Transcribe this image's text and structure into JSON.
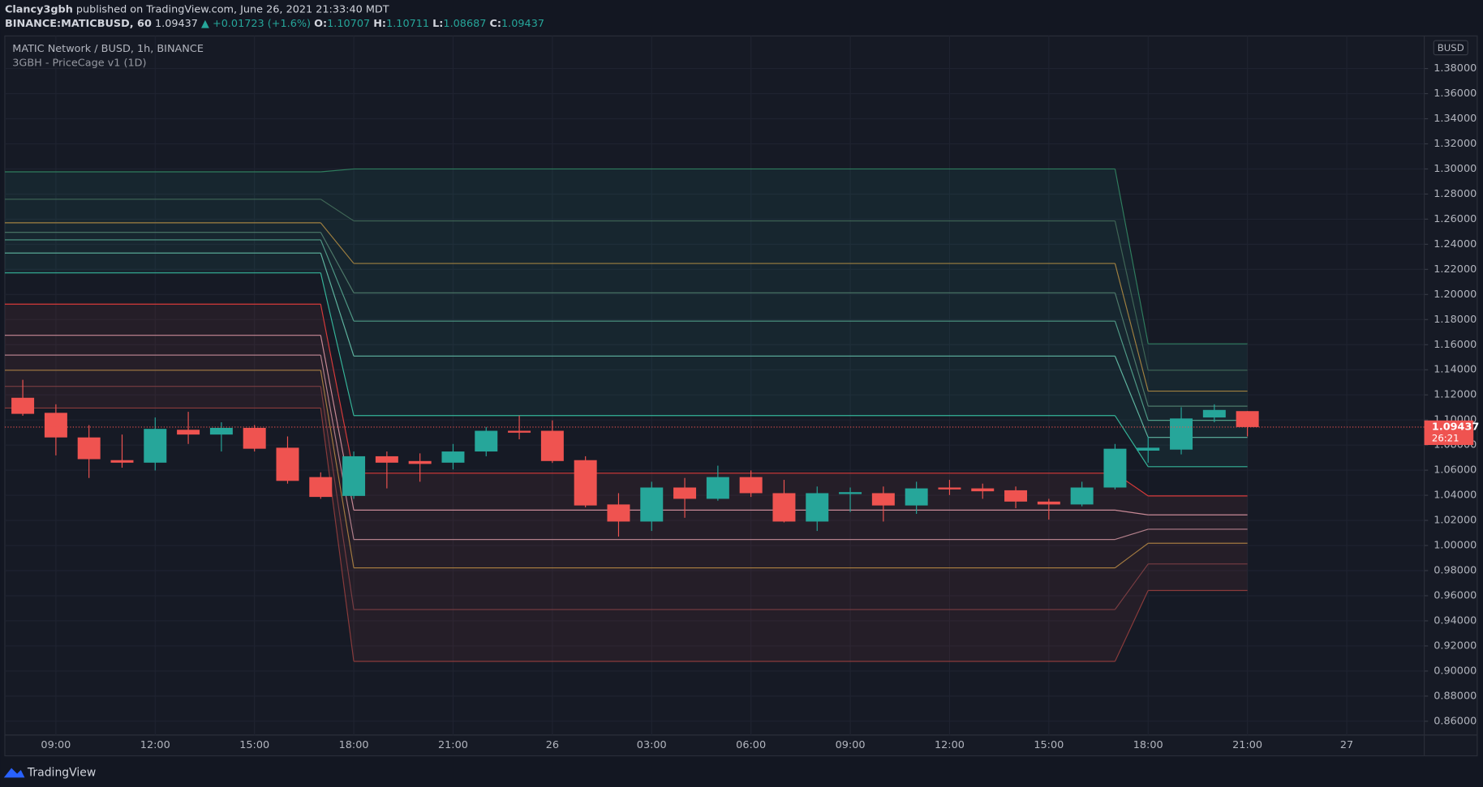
{
  "header": {
    "author": "Clancy3gbh",
    "published": "published on TradingView.com, June 26, 2021 21:33:40 MDT",
    "symbol": "BINANCE:MATICBUSD, 60",
    "price": "1.09437",
    "change": "▲ +0.01723 (+1.6%)",
    "o_label": "O:",
    "o": "1.10707",
    "h_label": "H:",
    "h": "1.10711",
    "l_label": "L:",
    "l": "1.08687",
    "c_label": "C:",
    "c": "1.09437"
  },
  "footer": {
    "brand": "TradingView"
  },
  "chart_data": {
    "type": "candlestick",
    "title": "MATIC Network / BUSD, 1h, BINANCE",
    "subtitle": "3GBH - PriceCage v1 (1D)",
    "currency": "BUSD",
    "last_price": 1.09437,
    "countdown": "26:21",
    "up_color": "#26a69a",
    "down_color": "#ef5350",
    "grid": true,
    "categories": [
      null,
      "09:00",
      null,
      null,
      "12:00",
      null,
      null,
      "15:00",
      null,
      null,
      "18:00",
      null,
      null,
      "21:00",
      null,
      null,
      "26",
      null,
      null,
      "03:00",
      null,
      null,
      "06:00",
      null,
      null,
      "09:00",
      null,
      null,
      "12:00",
      null,
      null,
      "15:00",
      null,
      null,
      "18:00",
      null,
      null,
      "21:00",
      null,
      null,
      "27"
    ],
    "open": [
      1.1177,
      1.1057,
      1.0861,
      1.068,
      1.066,
      1.0922,
      1.0884,
      1.0937,
      1.0779,
      1.0545,
      1.0395,
      1.0711,
      1.0673,
      1.066,
      1.0749,
      1.0914,
      1.0914,
      1.068,
      1.0327,
      1.0191,
      1.0462,
      1.0372,
      1.0545,
      1.0417,
      1.0191,
      1.041,
      1.0417,
      1.0319,
      1.0462,
      1.0455,
      1.044,
      1.035,
      1.0327,
      1.0462,
      1.0756,
      1.0764,
      1.102,
      1.10707,
      null,
      null,
      null
    ],
    "high": [
      1.132,
      1.1125,
      1.0959,
      1.0884,
      1.102,
      1.1065,
      1.0982,
      1.096,
      1.0869,
      1.0583,
      1.0749,
      1.0749,
      1.0734,
      1.0809,
      1.0944,
      1.1035,
      1.0997,
      1.0711,
      1.0417,
      1.0508,
      1.0538,
      1.0636,
      1.0598,
      1.0523,
      1.047,
      1.0462,
      1.047,
      1.0508,
      1.0523,
      1.0493,
      1.047,
      1.0372,
      1.0508,
      1.0809,
      1.0869,
      1.1102,
      1.1125,
      1.10711,
      null,
      null,
      null
    ],
    "low": [
      1.1034,
      1.0718,
      1.0538,
      1.062,
      1.0598,
      1.0809,
      1.0749,
      1.0749,
      1.0493,
      1.0372,
      1.0372,
      1.0455,
      1.0508,
      1.0606,
      1.0711,
      1.0846,
      1.0658,
      1.0304,
      1.0071,
      1.0116,
      1.0221,
      1.0357,
      1.0387,
      1.0184,
      1.0116,
      1.0267,
      1.0191,
      1.0252,
      1.0402,
      1.0372,
      1.0297,
      1.0206,
      1.0312,
      1.0447,
      1.066,
      1.0726,
      1.0982,
      1.08687,
      null,
      null,
      null
    ],
    "close": [
      1.1049,
      1.0861,
      1.0688,
      1.066,
      1.0929,
      1.0884,
      1.0937,
      1.0771,
      1.0515,
      1.0387,
      1.0711,
      1.066,
      1.065,
      1.0749,
      1.0914,
      1.0899,
      1.0673,
      1.0319,
      1.0191,
      1.0462,
      1.0372,
      1.0545,
      1.0417,
      1.0191,
      1.0417,
      1.0425,
      1.0319,
      1.0455,
      1.0447,
      1.0432,
      1.035,
      1.0327,
      1.0462,
      1.0771,
      1.0779,
      1.1012,
      1.108,
      1.09437,
      null,
      null,
      null
    ],
    "bands": [
      {
        "color": "#2f7d5e",
        "levels": [
          1.2977,
          1.3,
          1.1607
        ]
      },
      {
        "color": "#3f6656",
        "levels": [
          1.2759,
          1.2586,
          1.1396
        ]
      },
      {
        "color": "#a08040",
        "levels": [
          1.2571,
          1.2247,
          1.123
        ]
      },
      {
        "color": "#4e7a6a",
        "levels": [
          1.2495,
          1.2013,
          1.111
        ]
      },
      {
        "color": "#4f9a86",
        "levels": [
          1.2435,
          1.1788,
          1.0997
        ]
      },
      {
        "color": "#5fb5a0",
        "levels": [
          1.233,
          1.1509,
          1.0861
        ]
      },
      {
        "color": "#35b59a",
        "levels": [
          1.2172,
          1.1035,
          1.0628
        ]
      },
      {
        "color": "#d83a3a",
        "levels": [
          1.1923,
          1.0576,
          1.0395
        ]
      },
      {
        "color": "#c98a96",
        "levels": [
          1.1675,
          1.0282,
          1.0244
        ]
      },
      {
        "color": "#b27f8a",
        "levels": [
          1.1517,
          1.0048,
          1.013
        ]
      },
      {
        "color": "#a37a40",
        "levels": [
          1.1396,
          0.9822,
          1.0018
        ]
      },
      {
        "color": "#7a3d42",
        "levels": [
          1.1268,
          0.949,
          0.9853
        ]
      },
      {
        "color": "#8a3b3b",
        "levels": [
          1.1095,
          0.9077,
          0.9642
        ]
      }
    ],
    "ylim": [
      0.849,
      1.406
    ],
    "yticks": [
      {
        "value": 0.86,
        "label": "0.86000"
      },
      {
        "value": 0.88,
        "label": "0.88000"
      },
      {
        "value": 0.9,
        "label": "0.90000"
      },
      {
        "value": 0.92,
        "label": "0.92000"
      },
      {
        "value": 0.94,
        "label": "0.94000"
      },
      {
        "value": 0.96,
        "label": "0.96000"
      },
      {
        "value": 0.98,
        "label": "0.98000"
      },
      {
        "value": 1.0,
        "label": "1.00000"
      },
      {
        "value": 1.02,
        "label": "1.02000"
      },
      {
        "value": 1.04,
        "label": "1.04000"
      },
      {
        "value": 1.06,
        "label": "1.06000"
      },
      {
        "value": 1.08,
        "label": "1.08000"
      },
      {
        "value": 1.1,
        "label": "1.10000"
      },
      {
        "value": 1.12,
        "label": "1.12000"
      },
      {
        "value": 1.14,
        "label": "1.14000"
      },
      {
        "value": 1.16,
        "label": "1.16000"
      },
      {
        "value": 1.18,
        "label": "1.18000"
      },
      {
        "value": 1.2,
        "label": "1.20000"
      },
      {
        "value": 1.22,
        "label": "1.22000"
      },
      {
        "value": 1.24,
        "label": "1.24000"
      },
      {
        "value": 1.26,
        "label": "1.26000"
      },
      {
        "value": 1.28,
        "label": "1.28000"
      },
      {
        "value": 1.3,
        "label": "1.30000"
      },
      {
        "value": 1.32,
        "label": "1.32000"
      },
      {
        "value": 1.34,
        "label": "1.34000"
      },
      {
        "value": 1.36,
        "label": "1.36000"
      },
      {
        "value": 1.38,
        "label": "1.38000"
      }
    ]
  }
}
